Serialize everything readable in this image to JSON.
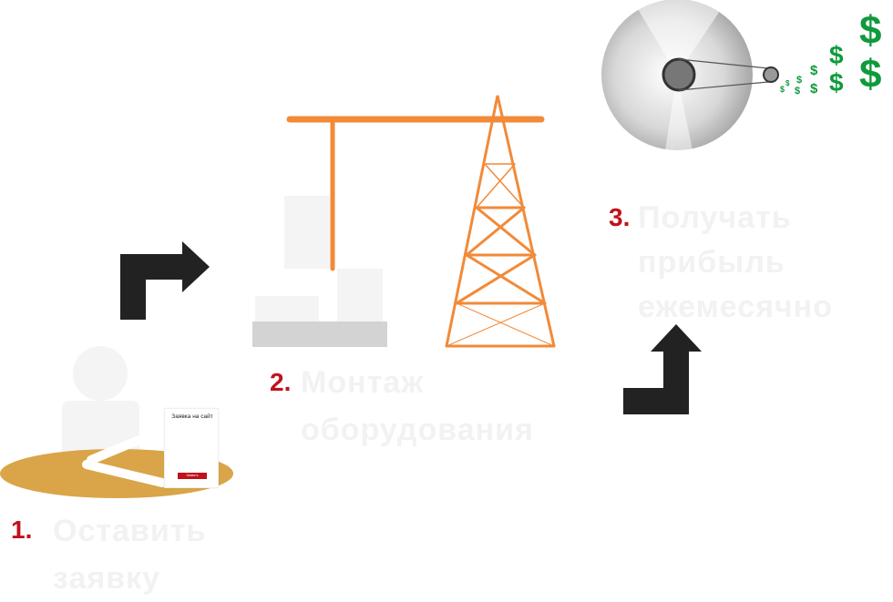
{
  "steps": [
    {
      "number": "1.",
      "text_lines": [
        "Оставить",
        "заявку"
      ]
    },
    {
      "number": "2.",
      "text_lines": [
        "Монтаж",
        "оборудования"
      ]
    },
    {
      "number": "3.",
      "text_lines": [
        "Получать",
        "прибыль",
        "ежемесячно"
      ]
    }
  ],
  "form_card": {
    "title": "Заявка на сайт",
    "button_label": "Заявить"
  },
  "dollar_sign": "$",
  "colors": {
    "accent_red": "#c0121b",
    "crane_orange": "#f28a38",
    "dollar_green": "#0f9a3c",
    "arrow_dark": "#222222",
    "table_gold": "#d9a548"
  }
}
